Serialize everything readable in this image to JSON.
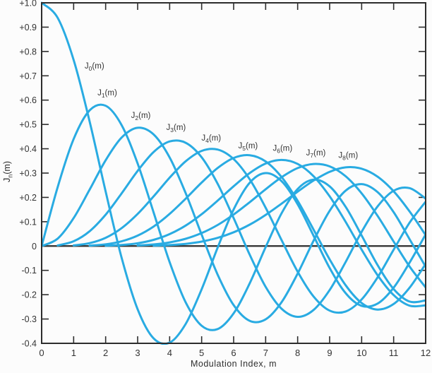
{
  "figure": {
    "background": "#fcfcfc",
    "axis_color": "#2d2d2d",
    "text_color": "#333333",
    "curve_color": "#29ABE2"
  },
  "chart_data": {
    "type": "line",
    "title": "",
    "xlabel": "Modulation Index, m",
    "ylabel": {
      "base": "J",
      "sub": "n",
      "rest": "(m)"
    },
    "xlim": [
      0,
      12
    ],
    "ylim": [
      -0.4,
      1.0
    ],
    "grid": false,
    "legend_position": "inline-curve-labels",
    "x_tick_values": [
      0,
      1,
      2,
      3,
      4,
      5,
      6,
      7,
      8,
      9,
      10,
      11,
      12
    ],
    "x_tick_labels": [
      "0",
      "1",
      "2",
      "3",
      "4",
      "5",
      "6",
      "7",
      "8",
      "9",
      "10",
      "11",
      "12"
    ],
    "y_tick_values": [
      1.0,
      0.9,
      0.8,
      0.7,
      0.6,
      0.5,
      0.4,
      0.3,
      0.2,
      0.1,
      0,
      -0.1,
      -0.2,
      -0.3,
      -0.4
    ],
    "y_tick_labels": [
      "+1.0",
      "+0.9",
      "+0.8",
      "+0.7",
      "+0.6",
      "+0.5",
      "+0.4",
      "+0.3",
      "+0.2",
      "+0.1",
      "0",
      "-0.1",
      "-0.2",
      "-0.3",
      "-0.4"
    ],
    "x": [
      0,
      0.5,
      1,
      1.5,
      2,
      2.5,
      3,
      3.5,
      4,
      4.5,
      5,
      5.5,
      6,
      6.5,
      7,
      7.5,
      8,
      8.5,
      9,
      9.5,
      10,
      10.5,
      11,
      11.5,
      12
    ],
    "series": [
      {
        "name": "J0(m)",
        "label": {
          "base": "J",
          "sub": "0",
          "rest": "(m)"
        },
        "label_pos": {
          "x": 1.65,
          "y": 0.73
        },
        "values": [
          1.0,
          0.9385,
          0.7652,
          0.5118,
          0.2239,
          -0.0484,
          -0.2601,
          -0.3801,
          -0.3971,
          -0.3205,
          -0.1776,
          -0.0068,
          0.1506,
          0.2601,
          0.3001,
          0.2663,
          0.1717,
          0.0419,
          -0.0903,
          -0.1939,
          -0.2459,
          -0.2366,
          -0.1712,
          -0.0677,
          0.0477
        ]
      },
      {
        "name": "J1(m)",
        "label": {
          "base": "J",
          "sub": "1",
          "rest": "(m)"
        },
        "label_pos": {
          "x": 2.05,
          "y": 0.62
        },
        "values": [
          0.0,
          0.2423,
          0.4401,
          0.5579,
          0.5767,
          0.4971,
          0.3391,
          0.1374,
          -0.066,
          -0.2311,
          -0.3276,
          -0.3414,
          -0.2767,
          -0.1538,
          -0.0047,
          0.1352,
          0.2346,
          0.2731,
          0.2453,
          0.1613,
          0.0435,
          -0.0789,
          -0.1768,
          -0.2284,
          -0.2234
        ]
      },
      {
        "name": "J2(m)",
        "label": {
          "base": "J",
          "sub": "2",
          "rest": "(m)"
        },
        "label_pos": {
          "x": 3.1,
          "y": 0.527
        },
        "values": [
          0.0,
          0.0306,
          0.1149,
          0.2321,
          0.3528,
          0.4461,
          0.4861,
          0.4586,
          0.3641,
          0.2178,
          0.0466,
          -0.1173,
          -0.2429,
          -0.3074,
          -0.3014,
          -0.2303,
          -0.113,
          0.0223,
          0.1448,
          0.2279,
          0.2546,
          0.2216,
          0.139,
          0.0279,
          -0.0849
        ]
      },
      {
        "name": "J3(m)",
        "label": {
          "base": "J",
          "sub": "3",
          "rest": "(m)"
        },
        "label_pos": {
          "x": 4.2,
          "y": 0.477
        },
        "values": [
          0.0,
          0.0026,
          0.0196,
          0.061,
          0.1289,
          0.2166,
          0.3091,
          0.3868,
          0.4302,
          0.4247,
          0.3648,
          0.2561,
          0.1148,
          -0.0353,
          -0.1676,
          -0.2581,
          -0.2911,
          -0.2626,
          -0.1809,
          -0.0653,
          0.0584,
          0.1633,
          0.2273,
          0.2381,
          0.1951
        ]
      },
      {
        "name": "J4(m)",
        "label": {
          "base": "J",
          "sub": "4",
          "rest": "(m)"
        },
        "label_pos": {
          "x": 5.3,
          "y": 0.434
        },
        "values": [
          0.0,
          0.0002,
          0.0025,
          0.0118,
          0.034,
          0.0738,
          0.132,
          0.2044,
          0.2811,
          0.3484,
          0.3912,
          0.3967,
          0.3576,
          0.2748,
          0.1578,
          0.0238,
          -0.1054,
          -0.2077,
          -0.2655,
          -0.2691,
          -0.2196,
          -0.1283,
          -0.015,
          0.0963,
          0.1825
        ]
      },
      {
        "name": "J5(m)",
        "label": {
          "base": "J",
          "sub": "5",
          "rest": "(m)"
        },
        "label_pos": {
          "x": 6.45,
          "y": 0.402
        },
        "values": [
          0.0,
          0.0,
          0.0002,
          0.0018,
          0.007,
          0.0195,
          0.043,
          0.0804,
          0.1321,
          0.1947,
          0.2611,
          0.3209,
          0.3621,
          0.3736,
          0.3479,
          0.2835,
          0.1858,
          0.0671,
          -0.055,
          -0.1613,
          -0.2341,
          -0.2611,
          -0.2383,
          -0.1711,
          -0.0735
        ]
      },
      {
        "name": "J6(m)",
        "label": {
          "base": "J",
          "sub": "6",
          "rest": "(m)"
        },
        "label_pos": {
          "x": 7.53,
          "y": 0.392
        },
        "values": [
          0.0,
          0.0,
          0.0,
          0.0002,
          0.0012,
          0.0042,
          0.0114,
          0.0254,
          0.0491,
          0.0843,
          0.131,
          0.1868,
          0.2458,
          0.2999,
          0.3392,
          0.3541,
          0.3376,
          0.2867,
          0.2043,
          0.0993,
          -0.0145,
          -0.1203,
          -0.2016,
          -0.2451,
          -0.2437
        ]
      },
      {
        "name": "J7(m)",
        "label": {
          "base": "J",
          "sub": "7",
          "rest": "(m)"
        },
        "label_pos": {
          "x": 8.57,
          "y": 0.372
        },
        "values": [
          0.0,
          0.0,
          0.0,
          0.0,
          0.0002,
          0.0008,
          0.0025,
          0.0067,
          0.0152,
          0.03,
          0.0534,
          0.0866,
          0.1296,
          0.1801,
          0.2336,
          0.2832,
          0.3206,
          0.3376,
          0.3275,
          0.2868,
          0.2167,
          0.1236,
          0.0184,
          -0.0846,
          -0.1703
        ]
      },
      {
        "name": "J8(m)",
        "label": {
          "base": "J",
          "sub": "8",
          "rest": "(m)"
        },
        "label_pos": {
          "x": 9.58,
          "y": 0.363
        },
        "values": [
          0.0,
          0.0,
          0.0,
          0.0,
          0.0,
          0.0001,
          0.0005,
          0.0015,
          0.004,
          0.0091,
          0.0184,
          0.0337,
          0.0565,
          0.088,
          0.128,
          0.1744,
          0.2235,
          0.2694,
          0.3051,
          0.3236,
          0.3179,
          0.2851,
          0.225,
          0.142,
          0.0451
        ]
      }
    ]
  }
}
